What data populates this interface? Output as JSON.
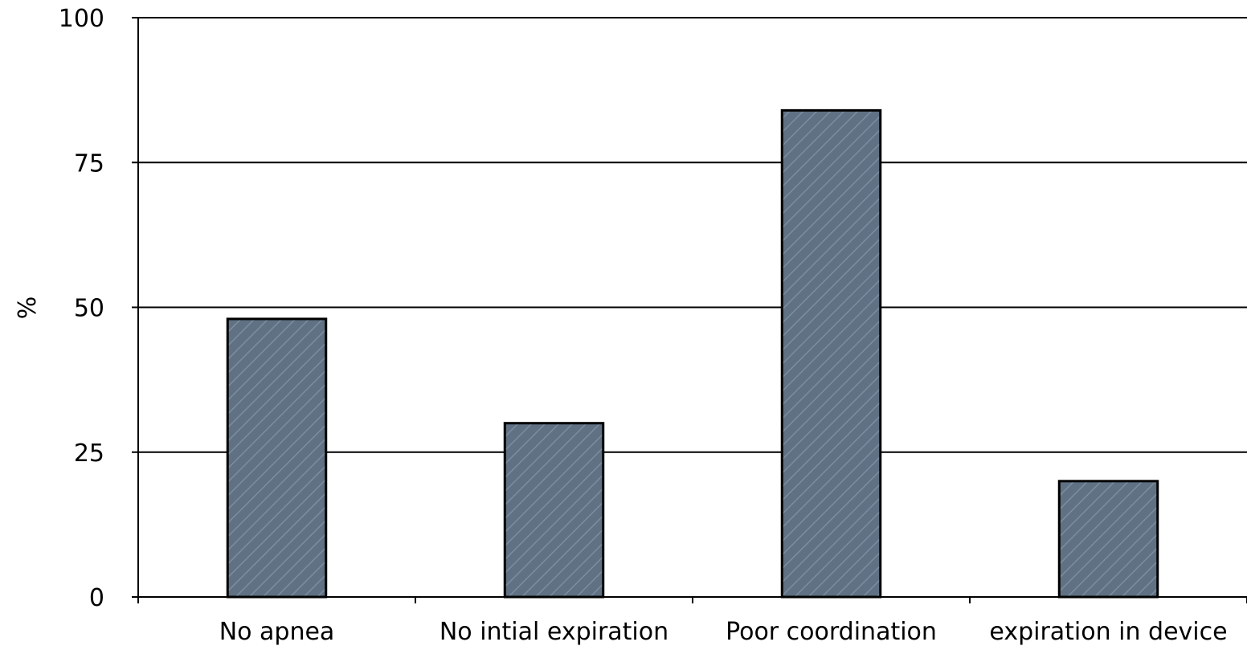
{
  "chart_data": {
    "type": "bar",
    "title": "",
    "xlabel": "",
    "ylabel": "%",
    "categories": [
      "No apnea",
      "No intial expiration",
      "Poor coordination",
      "expiration in device"
    ],
    "values": [
      48,
      30,
      84,
      20
    ],
    "ylim": [
      0,
      100
    ],
    "yticks": [
      0,
      25,
      50,
      75,
      100
    ],
    "ytick_labels": [
      "0",
      "25",
      "50",
      "75",
      "100"
    ],
    "grid": true,
    "legend": "none",
    "colors": {
      "bar_fill": "#5f7183",
      "bar_hatch": "#7b8da0",
      "bar_border": "#000000",
      "axis": "#000000",
      "gridline": "#000000"
    }
  }
}
